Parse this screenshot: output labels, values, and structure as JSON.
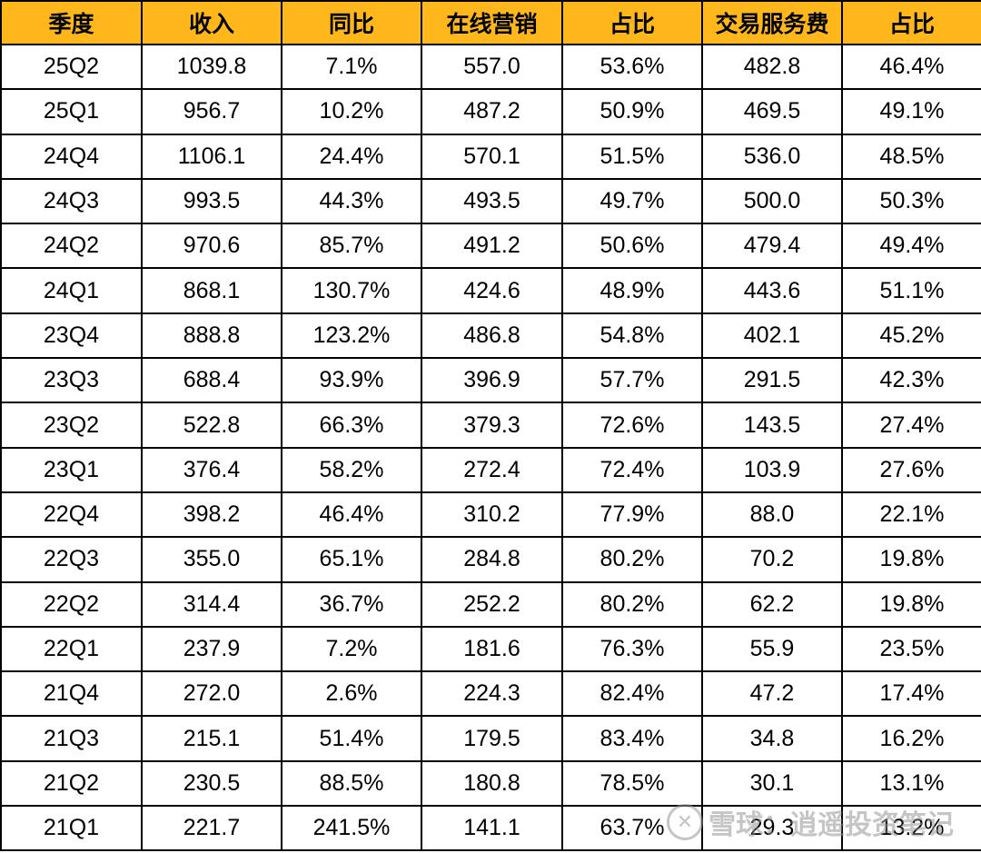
{
  "table": {
    "headers": [
      "季度",
      "收入",
      "同比",
      "在线营销",
      "占比",
      "交易服务费",
      "占比"
    ],
    "rows": [
      [
        "25Q2",
        "1039.8",
        "7.1%",
        "557.0",
        "53.6%",
        "482.8",
        "46.4%"
      ],
      [
        "25Q1",
        "956.7",
        "10.2%",
        "487.2",
        "50.9%",
        "469.5",
        "49.1%"
      ],
      [
        "24Q4",
        "1106.1",
        "24.4%",
        "570.1",
        "51.5%",
        "536.0",
        "48.5%"
      ],
      [
        "24Q3",
        "993.5",
        "44.3%",
        "493.5",
        "49.7%",
        "500.0",
        "50.3%"
      ],
      [
        "24Q2",
        "970.6",
        "85.7%",
        "491.2",
        "50.6%",
        "479.4",
        "49.4%"
      ],
      [
        "24Q1",
        "868.1",
        "130.7%",
        "424.6",
        "48.9%",
        "443.6",
        "51.1%"
      ],
      [
        "23Q4",
        "888.8",
        "123.2%",
        "486.8",
        "54.8%",
        "402.1",
        "45.2%"
      ],
      [
        "23Q3",
        "688.4",
        "93.9%",
        "396.9",
        "57.7%",
        "291.5",
        "42.3%"
      ],
      [
        "23Q2",
        "522.8",
        "66.3%",
        "379.3",
        "72.6%",
        "143.5",
        "27.4%"
      ],
      [
        "23Q1",
        "376.4",
        "58.2%",
        "272.4",
        "72.4%",
        "103.9",
        "27.6%"
      ],
      [
        "22Q4",
        "398.2",
        "46.4%",
        "310.2",
        "77.9%",
        "88.0",
        "22.1%"
      ],
      [
        "22Q3",
        "355.0",
        "65.1%",
        "284.8",
        "80.2%",
        "70.2",
        "19.8%"
      ],
      [
        "22Q2",
        "314.4",
        "36.7%",
        "252.2",
        "80.2%",
        "62.2",
        "19.8%"
      ],
      [
        "22Q1",
        "237.9",
        "7.2%",
        "181.6",
        "76.3%",
        "55.9",
        "23.5%"
      ],
      [
        "21Q4",
        "272.0",
        "2.6%",
        "224.3",
        "82.4%",
        "47.2",
        "17.4%"
      ],
      [
        "21Q3",
        "215.1",
        "51.4%",
        "179.5",
        "83.4%",
        "34.8",
        "16.2%"
      ],
      [
        "21Q2",
        "230.5",
        "88.5%",
        "180.8",
        "78.5%",
        "30.1",
        "13.1%"
      ],
      [
        "21Q1",
        "221.7",
        "241.5%",
        "141.1",
        "63.7%",
        "29.3",
        "13.2%"
      ]
    ]
  },
  "watermark": {
    "text": "雪球：逍遥投资笔记"
  },
  "colors": {
    "header_background": "#FFB71B",
    "border": "#000000"
  }
}
